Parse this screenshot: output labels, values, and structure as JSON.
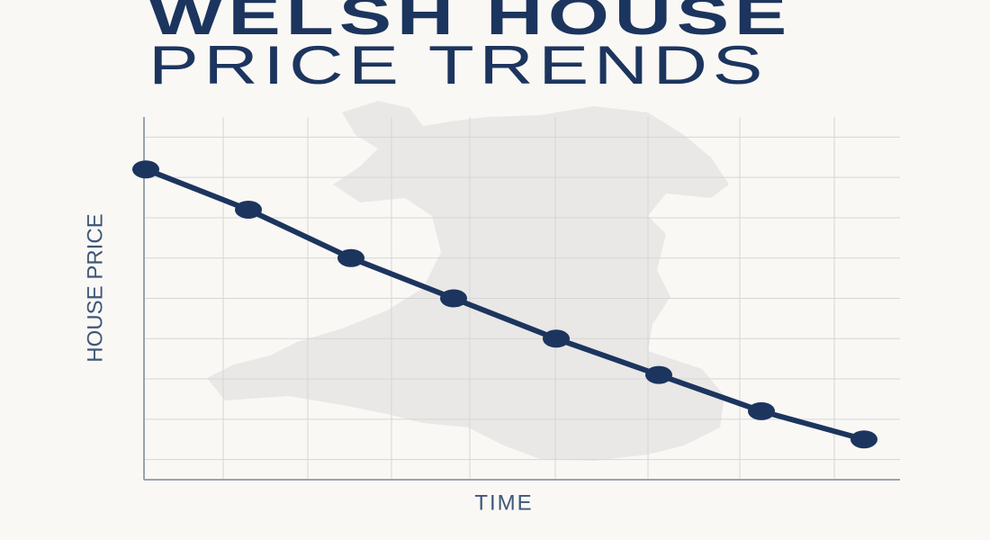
{
  "chart_data": {
    "type": "line",
    "title": [
      "WELSH HOUSE",
      "PRICE TRENDS"
    ],
    "x_label": "TIME",
    "y_label": "HOUSE PRICE",
    "categories": [
      null,
      null,
      null,
      null,
      null,
      null,
      null,
      null
    ],
    "values": [
      77,
      67,
      55,
      45,
      35,
      26,
      17,
      10
    ],
    "color": "#1c355e",
    "ylim": [
      0,
      90
    ],
    "yticks": [
      5,
      15,
      25,
      35,
      45,
      55,
      65,
      75,
      85
    ],
    "grid": true
  }
}
